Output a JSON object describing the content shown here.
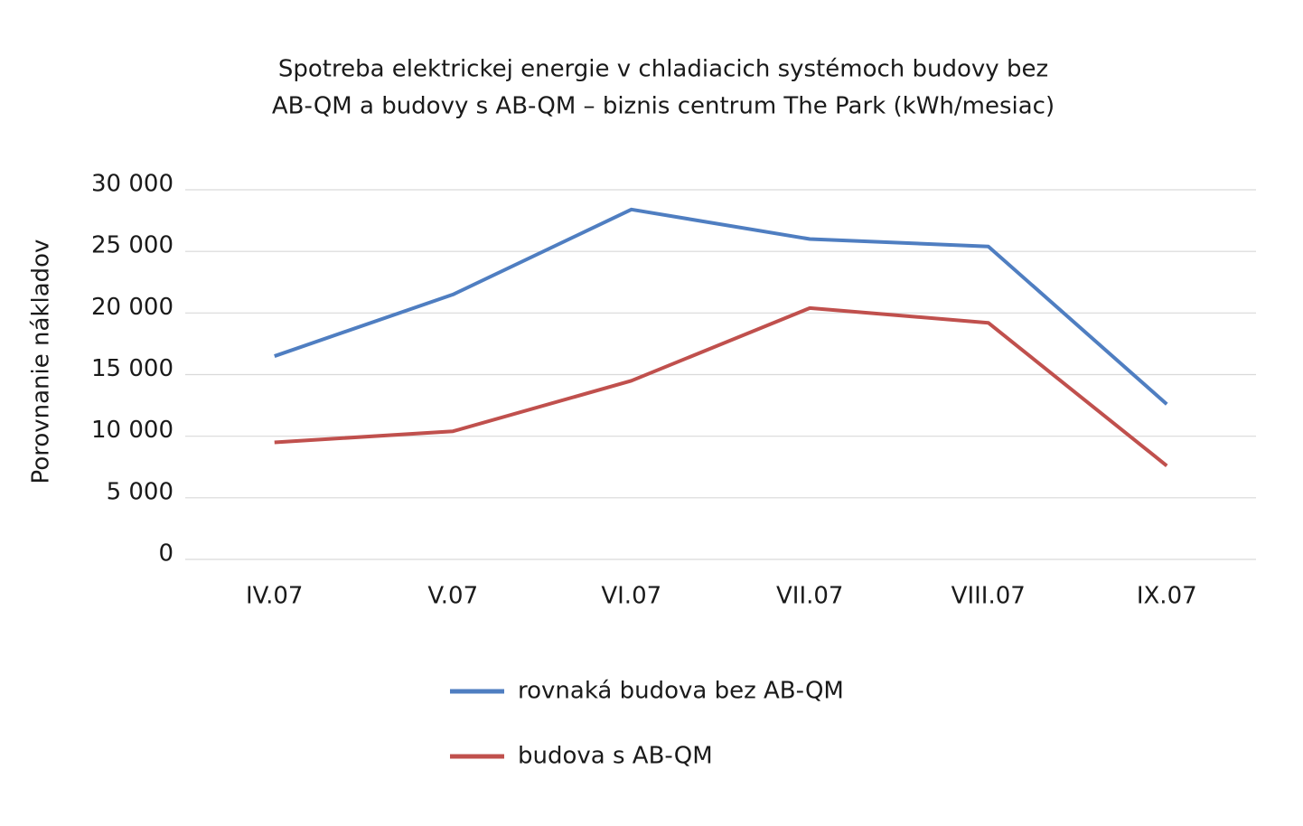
{
  "chart_data": {
    "type": "line",
    "title": [
      "Spotreba elektrickej energie v chladiacich systémoch budovy bez",
      "AB-QM a budovy s AB-QM – biznis centrum The Park (kWh/mesiac)"
    ],
    "y_label": "Porovnanie nákladov",
    "categories": [
      "IV.07",
      "V.07",
      "VI.07",
      "VII.07",
      "VIII.07",
      "IX.07"
    ],
    "series": [
      {
        "name": "rovnaká budova bez AB-QM",
        "color": "#4f7ec1",
        "values": [
          16500,
          21500,
          28400,
          26000,
          25400,
          12600
        ]
      },
      {
        "name": "budova s AB-QM",
        "color": "#c0504d",
        "values": [
          9500,
          10400,
          14500,
          20400,
          19200,
          7600
        ]
      }
    ],
    "ylim": [
      0,
      30000
    ],
    "yticks": [
      0,
      {
        "value": 5000,
        "label": "5 000"
      },
      {
        "value": 10000,
        "label": "10 000"
      },
      {
        "value": 15000,
        "label": "15 000"
      },
      {
        "value": 20000,
        "label": "20 000"
      },
      {
        "value": 25000,
        "label": "25 000"
      },
      {
        "value": 30000,
        "label": "30 000"
      }
    ],
    "grid": true
  }
}
